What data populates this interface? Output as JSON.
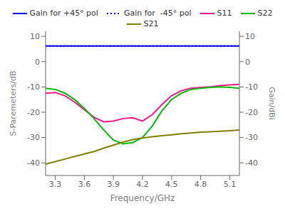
{
  "chart_data": {
    "type": "line",
    "x": [
      3.2,
      3.3,
      3.4,
      3.5,
      3.6,
      3.7,
      3.8,
      3.9,
      4.0,
      4.1,
      4.2,
      4.3,
      4.4,
      4.5,
      4.6,
      4.7,
      4.8,
      4.9,
      5.0,
      5.1,
      5.2
    ],
    "xlabel": "Frequency/GHz",
    "ylabel": "S-Paremeters/dB",
    "y2label": "Gain/dBi",
    "xlim": [
      3.2,
      5.2
    ],
    "xticks": [
      3.3,
      3.6,
      3.9,
      4.2,
      4.5,
      4.8,
      5.1
    ],
    "ylim": [
      -45,
      12
    ],
    "yticks": [
      -40,
      -30,
      -20,
      -10,
      0,
      10
    ],
    "y2lim": [
      -45,
      12
    ],
    "y2ticks": [
      -40,
      -30,
      -20,
      -10,
      0,
      10
    ],
    "grid": false,
    "series": [
      {
        "name": "Gain for +45° pol",
        "color": "#0000FF",
        "line_style": "solid",
        "axis": "y2",
        "values": [
          6.2,
          6.2,
          6.2,
          6.2,
          6.2,
          6.2,
          6.2,
          6.2,
          6.2,
          6.2,
          6.2,
          6.2,
          6.2,
          6.2,
          6.2,
          6.2,
          6.2,
          6.2,
          6.2,
          6.2,
          6.2
        ]
      },
      {
        "name": "Gain for  -45° pol",
        "color": "#0000FF",
        "line_style": "dotted",
        "axis": "y2",
        "values": [
          6.2,
          6.2,
          6.2,
          6.2,
          6.2,
          6.2,
          6.2,
          6.2,
          6.2,
          6.2,
          6.2,
          6.2,
          6.2,
          6.2,
          6.2,
          6.2,
          6.2,
          6.2,
          6.2,
          6.2,
          6.2
        ]
      },
      {
        "name": "S11",
        "color": "#FF1493",
        "line_style": "solid",
        "values": [
          -12.5,
          -12.2,
          -13.5,
          -16.0,
          -19.0,
          -22.0,
          -23.8,
          -23.5,
          -22.5,
          -22.2,
          -23.5,
          -21.0,
          -17.0,
          -13.5,
          -11.5,
          -10.5,
          -10.2,
          -10.0,
          -9.5,
          -9.2,
          -9.0
        ]
      },
      {
        "name": "S22",
        "color": "#00BB00",
        "line_style": "solid",
        "values": [
          -10.5,
          -11.0,
          -12.5,
          -15.0,
          -18.5,
          -22.5,
          -27.0,
          -31.0,
          -32.5,
          -32.0,
          -30.0,
          -25.5,
          -19.5,
          -15.0,
          -12.5,
          -11.0,
          -10.5,
          -10.2,
          -10.0,
          -10.2,
          -10.5
        ]
      },
      {
        "name": "S21",
        "color": "#808000",
        "line_style": "solid",
        "values": [
          -40.5,
          -39.5,
          -38.5,
          -37.5,
          -36.5,
          -35.5,
          -34.2,
          -33.0,
          -31.8,
          -30.8,
          -30.2,
          -29.7,
          -29.3,
          -28.9,
          -28.5,
          -28.2,
          -27.9,
          -27.7,
          -27.5,
          -27.3,
          -27.0
        ]
      }
    ]
  }
}
